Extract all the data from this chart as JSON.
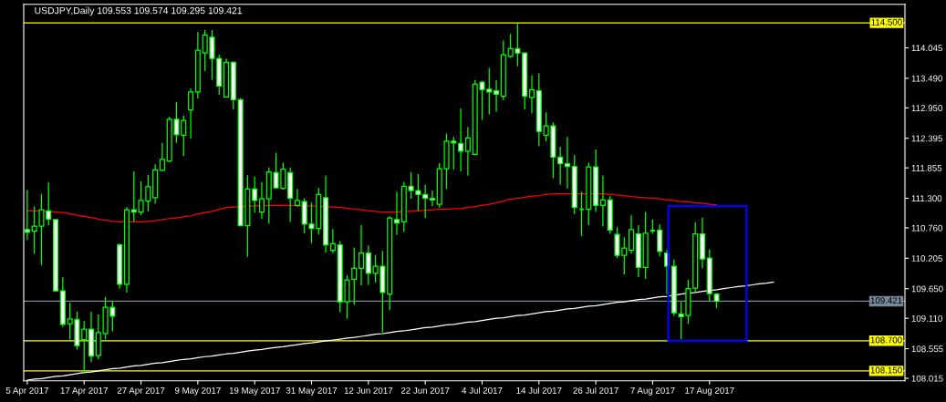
{
  "chart_data": {
    "type": "candlestick",
    "title": "USDJPY,Daily 109.553 109.574 109.295 109.421",
    "categories": [
      "5 Apr 2017",
      null,
      null,
      null,
      null,
      null,
      null,
      null,
      "17 Apr 2017",
      null,
      null,
      null,
      null,
      null,
      null,
      null,
      "27 Apr 2017",
      null,
      null,
      null,
      null,
      null,
      null,
      null,
      "9 May 2017",
      null,
      null,
      null,
      null,
      null,
      null,
      null,
      "19 May 2017",
      null,
      null,
      null,
      null,
      null,
      null,
      null,
      "31 May 2017",
      null,
      null,
      null,
      null,
      null,
      null,
      null,
      "12 Jun 2017",
      null,
      null,
      null,
      null,
      null,
      null,
      null,
      "22 Jun 2017",
      null,
      null,
      null,
      null,
      null,
      null,
      null,
      "4 Jul 2017",
      null,
      null,
      null,
      null,
      null,
      null,
      null,
      "14 Jul 2017",
      null,
      null,
      null,
      null,
      null,
      null,
      null,
      "26 Jul 2017",
      null,
      null,
      null,
      null,
      null,
      null,
      null,
      "7 Aug 2017",
      null,
      null,
      null,
      null,
      null,
      null,
      null,
      "17 Aug 2017",
      null,
      null,
      null,
      null,
      null,
      null,
      null,
      null,
      null,
      null,
      null,
      null,
      null,
      null,
      null,
      null,
      null,
      null,
      null,
      null,
      null,
      null,
      null,
      null,
      null,
      null,
      null
    ],
    "color": "#00ff00",
    "ohlc": [
      [
        110.73,
        111.45,
        110.54,
        110.68
      ],
      [
        110.7,
        111.15,
        110.29,
        110.79
      ],
      [
        110.79,
        111.38,
        110.08,
        111.09
      ],
      [
        111.07,
        111.59,
        110.81,
        110.92
      ],
      [
        110.91,
        110.92,
        109.6,
        109.61
      ],
      [
        109.61,
        109.86,
        108.96,
        109.0
      ],
      [
        109.01,
        109.39,
        108.72,
        109.1
      ],
      [
        109.09,
        109.23,
        108.54,
        108.61
      ],
      [
        108.72,
        109.06,
        108.1,
        108.91
      ],
      [
        108.91,
        109.23,
        108.31,
        108.42
      ],
      [
        108.43,
        109.18,
        108.36,
        108.85
      ],
      [
        108.83,
        109.5,
        108.72,
        109.31
      ],
      [
        109.31,
        109.43,
        108.87,
        109.15
      ],
      [
        110.45,
        110.48,
        109.65,
        109.73
      ],
      [
        109.73,
        111.14,
        109.58,
        111.09
      ],
      [
        111.09,
        111.79,
        110.87,
        111.05
      ],
      [
        111.05,
        111.61,
        110.99,
        111.26
      ],
      [
        111.25,
        111.73,
        111.06,
        111.51
      ],
      [
        111.31,
        111.92,
        111.2,
        111.82
      ],
      [
        111.81,
        112.31,
        111.8,
        112.01
      ],
      [
        111.98,
        112.79,
        111.96,
        112.74
      ],
      [
        112.74,
        113.06,
        112.31,
        112.46
      ],
      [
        112.45,
        112.81,
        112.07,
        112.72
      ],
      [
        112.91,
        113.3,
        112.39,
        113.24
      ],
      [
        113.24,
        114.33,
        113.12,
        114.0
      ],
      [
        113.95,
        114.37,
        113.62,
        114.28
      ],
      [
        114.24,
        114.37,
        113.46,
        113.85
      ],
      [
        113.85,
        113.92,
        113.19,
        113.35
      ],
      [
        113.15,
        113.85,
        113.14,
        113.78
      ],
      [
        113.78,
        113.8,
        112.92,
        113.1
      ],
      [
        113.1,
        113.13,
        110.79,
        110.8
      ],
      [
        110.8,
        111.72,
        110.23,
        111.47
      ],
      [
        111.47,
        111.7,
        111.04,
        111.26
      ],
      [
        111.05,
        111.6,
        110.92,
        111.29
      ],
      [
        111.29,
        111.86,
        110.84,
        111.78
      ],
      [
        111.77,
        112.13,
        111.48,
        111.49
      ],
      [
        111.48,
        111.95,
        111.46,
        111.83
      ],
      [
        111.77,
        111.86,
        110.87,
        111.3
      ],
      [
        111.17,
        111.47,
        111.15,
        111.26
      ],
      [
        111.24,
        111.3,
        110.66,
        110.83
      ],
      [
        110.83,
        111.22,
        110.48,
        110.75
      ],
      [
        110.75,
        111.49,
        110.64,
        111.37
      ],
      [
        111.31,
        111.71,
        110.31,
        110.45
      ],
      [
        110.35,
        110.74,
        110.3,
        110.47
      ],
      [
        110.45,
        110.52,
        109.22,
        109.41
      ],
      [
        109.41,
        109.9,
        109.1,
        109.81
      ],
      [
        109.82,
        110.4,
        109.36,
        110.02
      ],
      [
        110.02,
        110.81,
        109.71,
        110.3
      ],
      [
        110.3,
        110.44,
        109.72,
        109.93
      ],
      [
        109.93,
        110.27,
        109.76,
        110.06
      ],
      [
        110.06,
        110.34,
        108.85,
        109.58
      ],
      [
        109.55,
        110.97,
        109.26,
        110.94
      ],
      [
        110.91,
        111.42,
        110.63,
        110.85
      ],
      [
        110.87,
        111.6,
        110.69,
        111.52
      ],
      [
        111.52,
        111.78,
        111.29,
        111.44
      ],
      [
        111.44,
        111.74,
        111.07,
        111.37
      ],
      [
        111.37,
        111.54,
        110.94,
        111.3
      ],
      [
        111.3,
        111.44,
        111.15,
        111.27
      ],
      [
        111.19,
        111.94,
        111.13,
        111.84
      ],
      [
        111.84,
        112.48,
        111.47,
        112.34
      ],
      [
        112.34,
        112.42,
        111.83,
        112.31
      ],
      [
        112.3,
        112.94,
        111.79,
        112.16
      ],
      [
        112.16,
        112.6,
        111.71,
        112.4
      ],
      [
        112.1,
        113.46,
        112.08,
        113.38
      ],
      [
        113.42,
        113.44,
        112.73,
        113.28
      ],
      [
        113.29,
        113.68,
        112.83,
        113.24
      ],
      [
        113.26,
        113.46,
        112.88,
        113.2
      ],
      [
        113.16,
        114.18,
        113.09,
        113.92
      ],
      [
        113.89,
        114.3,
        113.86,
        114.03
      ],
      [
        114.03,
        114.48,
        113.71,
        113.95
      ],
      [
        113.95,
        113.96,
        112.92,
        113.16
      ],
      [
        113.14,
        113.54,
        112.85,
        113.28
      ],
      [
        113.26,
        113.58,
        112.25,
        112.52
      ],
      [
        112.45,
        112.87,
        112.34,
        112.62
      ],
      [
        112.62,
        112.68,
        111.67,
        112.05
      ],
      [
        112.05,
        112.24,
        111.55,
        111.93
      ],
      [
        111.93,
        112.42,
        111.48,
        111.88
      ],
      [
        111.88,
        112.09,
        111.01,
        111.13
      ],
      [
        111.1,
        111.42,
        110.61,
        111.1
      ],
      [
        111.1,
        111.95,
        110.81,
        111.87
      ],
      [
        111.87,
        112.19,
        111.05,
        111.17
      ],
      [
        111.17,
        111.71,
        110.79,
        111.27
      ],
      [
        111.27,
        111.34,
        110.65,
        110.72
      ],
      [
        110.64,
        110.77,
        110.21,
        110.26
      ],
      [
        110.26,
        110.59,
        109.91,
        110.39
      ],
      [
        110.35,
        110.99,
        110.29,
        110.73
      ],
      [
        110.65,
        110.81,
        109.86,
        110.04
      ],
      [
        110.04,
        111.05,
        109.83,
        110.66
      ],
      [
        110.71,
        110.91,
        110.65,
        110.71
      ],
      [
        110.72,
        110.82,
        110.24,
        110.33
      ],
      [
        110.3,
        110.36,
        109.55,
        110.06
      ],
      [
        110.06,
        110.18,
        109.15,
        109.21
      ],
      [
        109.19,
        109.41,
        108.72,
        109.14
      ],
      [
        109.16,
        109.81,
        109.01,
        109.65
      ],
      [
        109.66,
        110.86,
        109.59,
        110.65
      ],
      [
        110.65,
        110.95,
        110.02,
        110.19
      ],
      [
        110.21,
        110.37,
        109.43,
        109.56
      ],
      [
        109.553,
        109.574,
        109.295,
        109.421
      ],
      null,
      null,
      null,
      null,
      null,
      null,
      null,
      null,
      null,
      null,
      null,
      null,
      null,
      null,
      null,
      null,
      null,
      null,
      null,
      null,
      null,
      null,
      null,
      null,
      null,
      null
    ],
    "series": [
      {
        "type": "line",
        "color": "#ff0000",
        "values": [
          111.07,
          111.07,
          111.07,
          111.06,
          111.05,
          111.04,
          111.02,
          110.99,
          110.97,
          110.95,
          110.92,
          110.9,
          110.88,
          110.87,
          110.87,
          110.87,
          110.87,
          110.88,
          110.89,
          110.91,
          110.93,
          110.94,
          110.96,
          110.98,
          111.01,
          111.04,
          111.06,
          111.1,
          111.13,
          111.14,
          111.15,
          111.15,
          111.16,
          111.16,
          111.17,
          111.17,
          111.17,
          111.17,
          111.16,
          111.16,
          111.16,
          111.15,
          111.15,
          111.14,
          111.13,
          111.12,
          111.1,
          111.09,
          111.07,
          111.06,
          111.05,
          111.05,
          111.05,
          111.06,
          111.06,
          111.07,
          111.08,
          111.09,
          111.1,
          111.1,
          111.11,
          111.11,
          111.13,
          111.15,
          111.17,
          111.19,
          111.22,
          111.25,
          111.28,
          111.3,
          111.32,
          111.34,
          111.35,
          111.37,
          111.38,
          111.38,
          111.38,
          111.38,
          111.38,
          111.38,
          111.38,
          111.38,
          111.37,
          111.36,
          111.35,
          111.33,
          111.32,
          111.31,
          111.3,
          111.29,
          111.27,
          111.26,
          111.24,
          111.23,
          111.22,
          111.21,
          111.19,
          111.18,
          null,
          null,
          null,
          null,
          null,
          null,
          null,
          null,
          null,
          null,
          null,
          null,
          null,
          null,
          null,
          null,
          null,
          null,
          null,
          null,
          null,
          null,
          null,
          null,
          null,
          null
        ]
      },
      {
        "type": "line",
        "color": "#ffffff",
        "values": [
          107.98,
          108.0,
          108.01,
          108.03,
          108.05,
          108.06,
          108.08,
          108.1,
          108.12,
          108.13,
          108.15,
          108.17,
          108.19,
          108.2,
          108.22,
          108.24,
          108.25,
          108.27,
          108.29,
          108.3,
          108.32,
          108.34,
          108.36,
          108.37,
          108.39,
          108.41,
          108.42,
          108.44,
          108.46,
          108.47,
          108.49,
          108.51,
          108.53,
          108.54,
          108.56,
          108.58,
          108.59,
          108.61,
          108.63,
          108.65,
          108.66,
          108.68,
          108.7,
          108.71,
          108.73,
          108.75,
          108.76,
          108.78,
          108.8,
          108.82,
          108.83,
          108.85,
          108.87,
          108.88,
          108.9,
          108.92,
          108.94,
          108.95,
          108.97,
          108.99,
          109.0,
          109.02,
          109.04,
          109.05,
          109.07,
          109.09,
          109.11,
          109.12,
          109.14,
          109.16,
          109.17,
          109.19,
          109.21,
          109.23,
          109.24,
          109.26,
          109.28,
          109.29,
          109.31,
          109.33,
          109.34,
          109.36,
          109.38,
          109.4,
          109.41,
          109.43,
          109.45,
          109.46,
          109.48,
          109.5,
          109.51,
          109.53,
          109.55,
          109.57,
          109.58,
          109.6,
          109.62,
          109.63,
          109.65,
          109.67,
          109.69,
          109.7,
          109.72,
          109.74,
          109.75,
          109.77,
          null,
          null,
          null,
          null,
          null,
          null,
          null,
          null,
          null,
          null,
          null,
          null,
          null,
          null,
          null,
          null,
          null,
          null
        ]
      }
    ],
    "ylim": [
      107.97,
      114.84
    ],
    "yticks": [
      114.045,
      {
        "value": 113.49,
        "label": "113.490"
      },
      {
        "value": 112.95,
        "label": "112.950"
      },
      112.395,
      111.855,
      {
        "value": 111.3,
        "label": "111.300"
      },
      {
        "value": 110.76,
        "label": "110.760"
      },
      110.205,
      {
        "value": 109.65,
        "label": "109.650"
      },
      {
        "value": 109.11,
        "label": "109.110"
      },
      108.555,
      108.015
    ],
    "ref_lines": [
      {
        "axis": "y",
        "value": 114.5,
        "label": "114.500",
        "color": "#ffff00"
      },
      {
        "axis": "y",
        "value": 109.421,
        "label": "109.421",
        "color": "#778899"
      },
      {
        "axis": "y",
        "value": 108.7,
        "label": "108.700",
        "color": "#ffff00"
      },
      {
        "axis": "y",
        "value": 108.15,
        "label": "108.150",
        "color": "#ffff00"
      }
    ]
  }
}
